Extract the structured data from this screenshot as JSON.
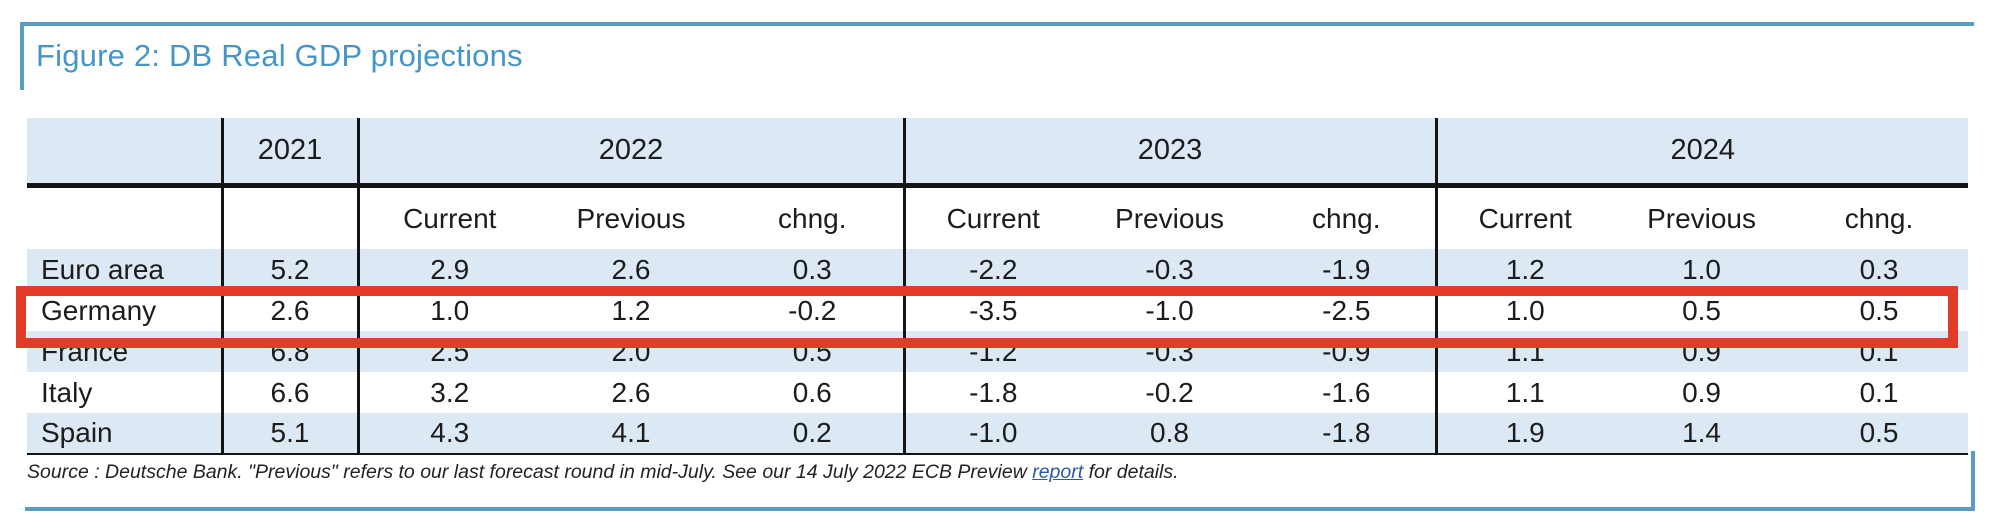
{
  "figure": {
    "title": "Figure 2: DB Real GDP projections"
  },
  "colors": {
    "accent_blue": "#4596c7",
    "frame_blue": "#5b9cc4",
    "row_stripe_blue": "#dce8f3",
    "highlight_red": "#e23c28",
    "link_blue": "#2a5aa8",
    "line_black": "#141414"
  },
  "table": {
    "corner_label": "",
    "column_groups": [
      {
        "year": "2021",
        "subcolumns": [
          ""
        ]
      },
      {
        "year": "2022",
        "subcolumns": [
          "Current",
          "Previous",
          "chng."
        ]
      },
      {
        "year": "2023",
        "subcolumns": [
          "Current",
          "Previous",
          "chng."
        ]
      },
      {
        "year": "2024",
        "subcolumns": [
          "Current",
          "Previous",
          "chng."
        ]
      }
    ],
    "rows": [
      {
        "label": "Euro area",
        "highlighted": false,
        "values": [
          "5.2",
          "2.9",
          "2.6",
          "0.3",
          "-2.2",
          "-0.3",
          "-1.9",
          "1.2",
          "1.0",
          "0.3"
        ]
      },
      {
        "label": "Germany",
        "highlighted": true,
        "values": [
          "2.6",
          "1.0",
          "1.2",
          "-0.2",
          "-3.5",
          "-1.0",
          "-2.5",
          "1.0",
          "0.5",
          "0.5"
        ]
      },
      {
        "label": "France",
        "highlighted": false,
        "values": [
          "6.8",
          "2.5",
          "2.0",
          "0.5",
          "-1.2",
          "-0.3",
          "-0.9",
          "1.1",
          "0.9",
          "0.1"
        ]
      },
      {
        "label": "Italy",
        "highlighted": false,
        "values": [
          "6.6",
          "3.2",
          "2.6",
          "0.6",
          "-1.8",
          "-0.2",
          "-1.6",
          "1.1",
          "0.9",
          "0.1"
        ]
      },
      {
        "label": "Spain",
        "highlighted": false,
        "values": [
          "5.1",
          "4.3",
          "4.1",
          "0.2",
          "-1.0",
          "0.8",
          "-1.8",
          "1.9",
          "1.4",
          "0.5"
        ]
      }
    ]
  },
  "footer": {
    "text_before_link": "Source : Deutsche Bank. \"Previous\" refers to our last forecast round in mid-July. See our 14 July 2022 ECB Preview ",
    "link_text": "report",
    "text_after_link": " for details."
  }
}
